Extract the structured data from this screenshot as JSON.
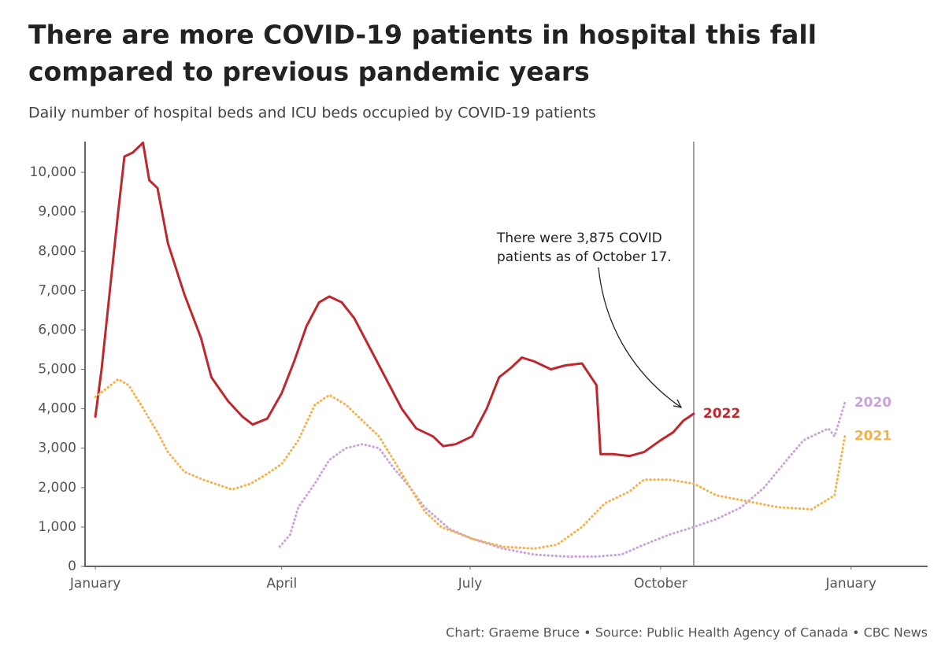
{
  "chart_data": {
    "type": "line",
    "title": [
      "There are more COVID-19 patients in hospital this fall",
      "compared to previous pandemic years"
    ],
    "subtitle": "Daily number of hospital beds and ICU beds occupied by COVID-19 patients",
    "source": "Chart: Graeme Bruce • Source: Public Health Agency of Canada • CBC News",
    "xlim": [
      -5,
      402
    ],
    "xticks": [
      {
        "value": 0,
        "label": "January"
      },
      {
        "value": 90,
        "label": "April"
      },
      {
        "value": 181,
        "label": "July"
      },
      {
        "value": 273,
        "label": "October"
      },
      {
        "value": 365,
        "label": "January"
      }
    ],
    "ylim": [
      0,
      10780
    ],
    "yticks": [
      0,
      {
        "value": 1000,
        "label": "1,000"
      },
      {
        "value": 2000,
        "label": "2,000"
      },
      {
        "value": 3000,
        "label": "3,000"
      },
      {
        "value": 4000,
        "label": "4,000"
      },
      {
        "value": 5000,
        "label": "5,000"
      },
      {
        "value": 6000,
        "label": "6,000"
      },
      {
        "value": 7000,
        "label": "7,000"
      },
      {
        "value": 8000,
        "label": "8,000"
      },
      {
        "value": 9000,
        "label": "9,000"
      },
      {
        "value": 10000,
        "label": "10,000"
      }
    ],
    "grid": false,
    "annotation": {
      "text": [
        "There were 3,875 COVID",
        "patients as of October 17."
      ],
      "x": 289
    },
    "series": [
      {
        "name": "2022",
        "color": "#c0272d",
        "style": "solid",
        "x": [
          0,
          3,
          7,
          11,
          14,
          18,
          23,
          26,
          30,
          35,
          43,
          51,
          56,
          64,
          71,
          76,
          83,
          90,
          96,
          102,
          108,
          113,
          119,
          125,
          132,
          140,
          148,
          155,
          163,
          168,
          174,
          182,
          189,
          195,
          201,
          206,
          212,
          220,
          227,
          235,
          242,
          244,
          250,
          258,
          265,
          273,
          279,
          284,
          289
        ],
        "values": [
          3800,
          5000,
          7000,
          9000,
          10400,
          10500,
          10750,
          9800,
          9600,
          8200,
          6900,
          5800,
          4800,
          4200,
          3800,
          3600,
          3750,
          4400,
          5200,
          6100,
          6700,
          6850,
          6700,
          6300,
          5600,
          4800,
          4000,
          3500,
          3300,
          3050,
          3100,
          3300,
          4000,
          4800,
          5050,
          5300,
          5200,
          5000,
          5100,
          5150,
          4600,
          2850,
          2850,
          2800,
          2900,
          3200,
          3400,
          3700,
          3875
        ]
      },
      {
        "name": "2020",
        "color": "#c9a3dc",
        "style": "dotted",
        "x": [
          89,
          94,
          98,
          106,
          113,
          121,
          129,
          137,
          144,
          152,
          159,
          171,
          182,
          197,
          212,
          227,
          242,
          254,
          265,
          277,
          289,
          300,
          312,
          323,
          334,
          342,
          354,
          357,
          362
        ],
        "values": [
          500,
          800,
          1500,
          2100,
          2700,
          3000,
          3100,
          3000,
          2500,
          2000,
          1500,
          950,
          700,
          450,
          300,
          250,
          250,
          300,
          550,
          800,
          1000,
          1200,
          1500,
          2000,
          2700,
          3200,
          3500,
          3300,
          4150
        ]
      },
      {
        "name": "2021",
        "color": "#f6b04a",
        "style": "dotted",
        "x": [
          0,
          5,
          11,
          16,
          22,
          30,
          35,
          43,
          52,
          66,
          75,
          83,
          90,
          98,
          106,
          113,
          121,
          129,
          137,
          144,
          152,
          159,
          167,
          182,
          197,
          212,
          223,
          235,
          246,
          258,
          265,
          277,
          289,
          300,
          315,
          330,
          346,
          357,
          362
        ],
        "values": [
          4300,
          4500,
          4750,
          4600,
          4100,
          3400,
          2900,
          2400,
          2200,
          1950,
          2100,
          2350,
          2600,
          3200,
          4100,
          4350,
          4100,
          3700,
          3300,
          2700,
          2000,
          1400,
          1000,
          700,
          500,
          450,
          550,
          1000,
          1600,
          1900,
          2200,
          2200,
          2100,
          1800,
          1650,
          1500,
          1450,
          1800,
          3300
        ]
      }
    ]
  }
}
